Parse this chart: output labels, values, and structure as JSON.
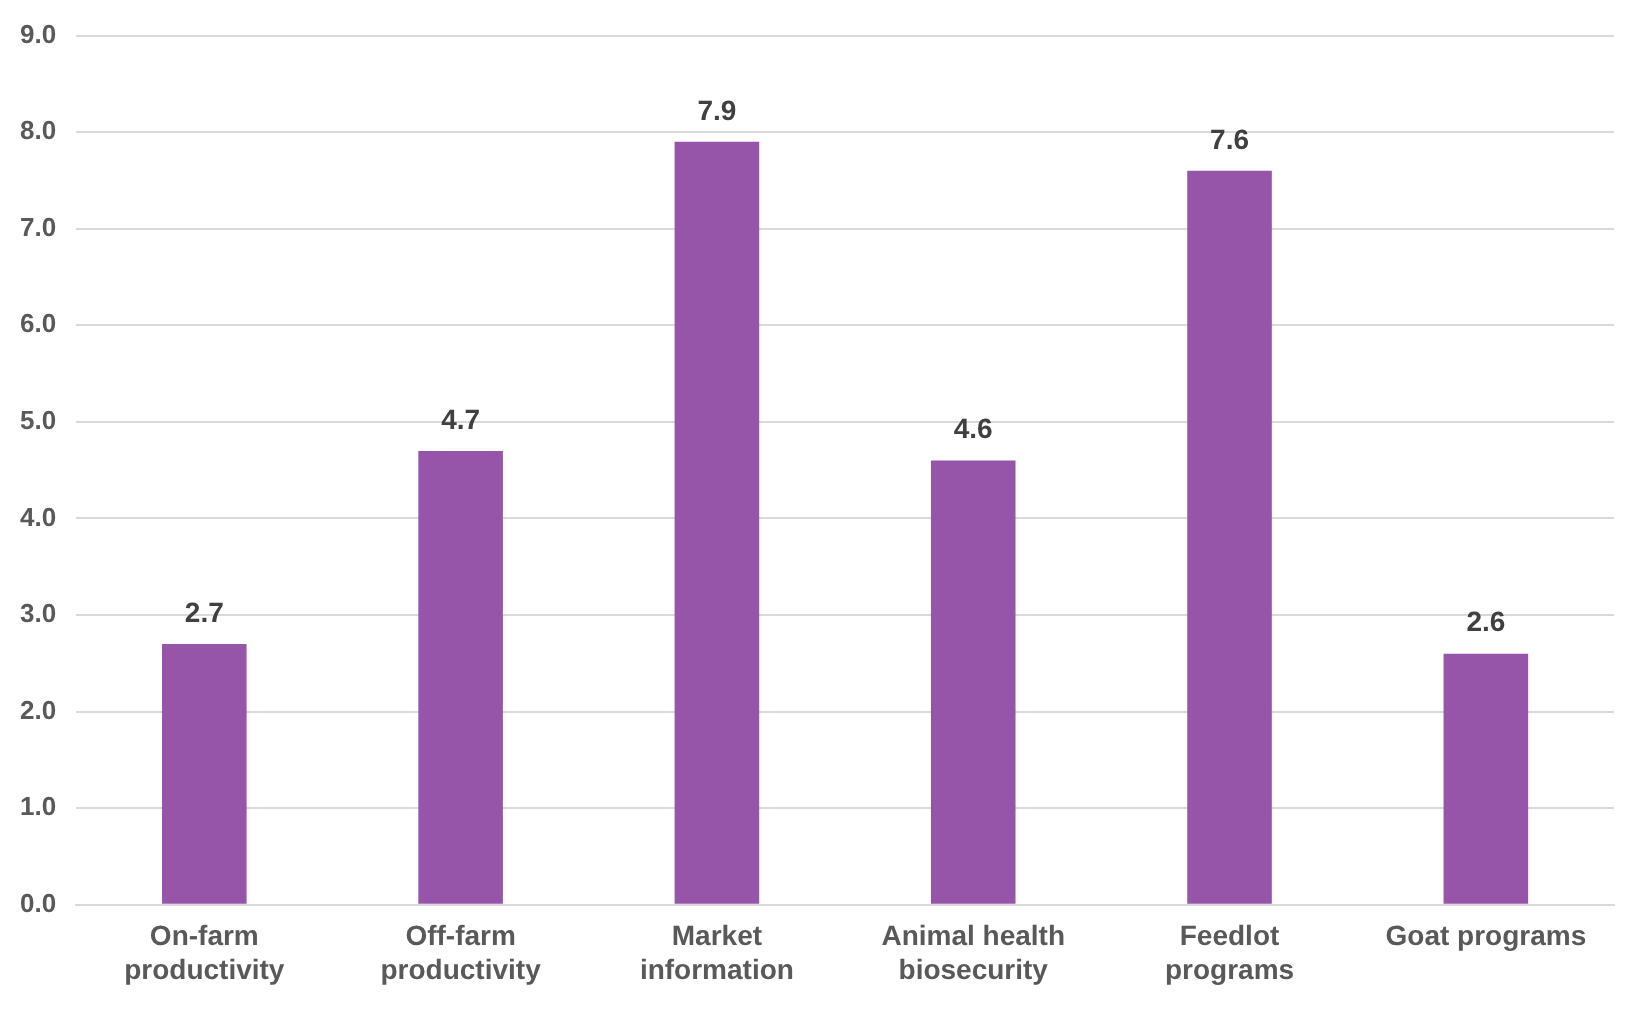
{
  "chart_data": {
    "type": "bar",
    "categories": [
      "On-farm productivity",
      "Off-farm productivity",
      "Market information",
      "Animal health biosecurity",
      "Feedlot programs",
      "Goat programs"
    ],
    "values": [
      2.7,
      4.7,
      7.9,
      4.6,
      7.6,
      2.6
    ],
    "color": "#9655a8",
    "ylim": [
      0,
      9
    ],
    "yticks": [
      {
        "value": 0,
        "label": "0.0"
      },
      {
        "value": 1,
        "label": "1.0"
      },
      {
        "value": 2,
        "label": "2.0"
      },
      {
        "value": 3,
        "label": "3.0"
      },
      {
        "value": 4,
        "label": "4.0"
      },
      {
        "value": 5,
        "label": "5.0"
      },
      {
        "value": 6,
        "label": "6.0"
      },
      {
        "value": 7,
        "label": "7.0"
      },
      {
        "value": 8,
        "label": "8.0"
      },
      {
        "value": 9,
        "label": "9.0"
      }
    ],
    "grid": "y",
    "data_labels": true
  }
}
